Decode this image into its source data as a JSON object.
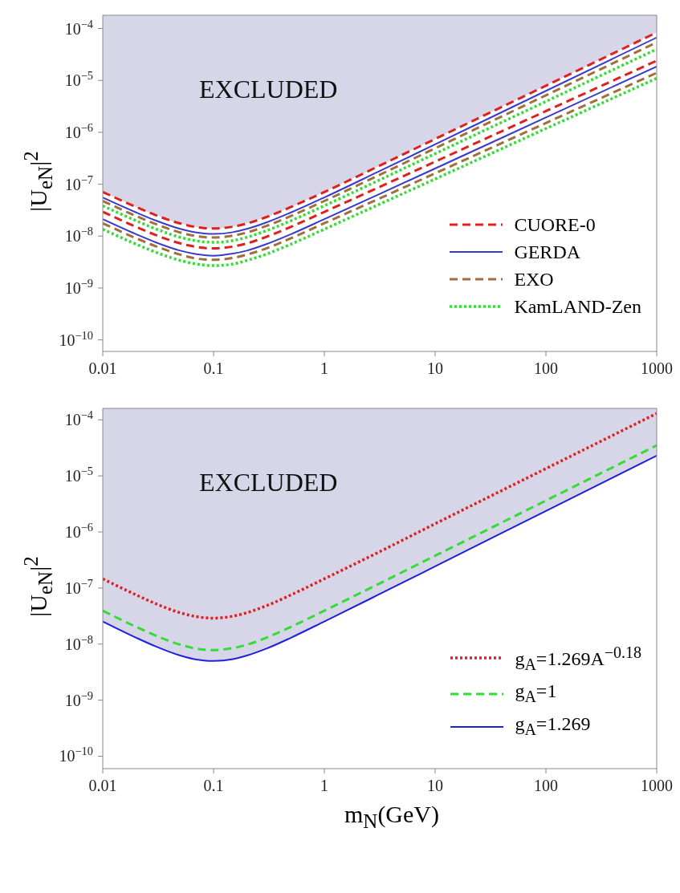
{
  "chart_data": [
    {
      "type": "line",
      "ylabel": "|U$_{eN}$|$^{2}$",
      "annotations": [
        "EXCLUDED"
      ],
      "log": "xy",
      "legend": "right",
      "xlim": [
        0.01,
        1000
      ],
      "xticks": [
        0.01,
        0.1,
        1,
        10,
        100,
        1000
      ],
      "ylim": [
        6e-11,
        0.00018
      ],
      "yticks": [
        {
          "value": 1e-10,
          "label": "10$^{−10}$"
        },
        {
          "value": 1e-09,
          "label": "10$^{−9}$"
        },
        {
          "value": 1e-08,
          "label": "10$^{−8}$"
        },
        {
          "value": 1e-07,
          "label": "10$^{−7}$"
        },
        {
          "value": 1e-06,
          "label": "10$^{−6}$"
        },
        {
          "value": 1e-05,
          "label": "10$^{−5}$"
        },
        {
          "value": 0.0001,
          "label": "10$^{−4}$"
        }
      ],
      "x": [
        0.01,
        0.02,
        0.03,
        0.05,
        0.07,
        0.1,
        0.15,
        0.2,
        0.3,
        0.5,
        1,
        3,
        10,
        100,
        1000
      ],
      "series": [
        {
          "name": "CUORE-0",
          "color": "#e0201c",
          "line_style": "dashed",
          "values": [
            7.07e-08,
            3.64e-08,
            2.54e-08,
            1.75e-08,
            1.49e-08,
            1.4e-08,
            1.52e-08,
            1.75e-08,
            2.33e-08,
            3.64e-08,
            7.07e-08,
            2.16e-07,
            7.44e-07,
            7.9e-06,
            8.4e-05
          ],
          "lower": [
            7.07e-08,
            3.64e-08,
            2.54e-08,
            1.75e-08,
            1.49e-08,
            1.4e-08,
            1.52e-08,
            1.75e-08,
            2.33e-08,
            3.64e-08,
            7.07e-08,
            2.16e-07,
            7.44e-07,
            7.9e-06,
            8.4e-05
          ],
          "upper": [
            0.00018,
            0.00018,
            0.00018,
            0.00018,
            0.00018,
            0.00018,
            0.00018,
            0.00018,
            0.00018,
            0.00018,
            0.00018,
            0.00018,
            0.00018,
            0.00018,
            0.00018
          ]
        },
        {
          "name": "GERDA",
          "color": "#3a3ad0",
          "line_style": "solid",
          "values": [
            5.56e-08,
            2.86e-08,
            2e-08,
            1.375e-08,
            1.17e-08,
            1.1e-08,
            1.19e-08,
            1.375e-08,
            1.83e-08,
            2.86e-08,
            5.56e-08,
            1.7e-07,
            5.87e-07,
            6.28e-06,
            6.7e-05
          ]
        },
        {
          "name": "EXO",
          "color": "#a0703c",
          "line_style": "dashed",
          "values": [
            4.75e-08,
            2.44e-08,
            1.71e-08,
            1.175e-08,
            1e-08,
            9.4e-09,
            1.02e-08,
            1.175e-08,
            1.57e-08,
            2.44e-08,
            4.75e-08,
            1.44e-07,
            4.92e-07,
            5.16e-06,
            5.4e-05
          ]
        },
        {
          "name": "KamLAND-Zen",
          "color": "#33dd33",
          "line_style": "dotted",
          "values": [
            3.84e-08,
            1.98e-08,
            1.38e-08,
            9.5e-09,
            8.1e-09,
            7.6e-09,
            8.2e-09,
            9.5e-09,
            1.27e-08,
            1.98e-08,
            3.84e-08,
            1.15e-07,
            3.87e-07,
            3.93e-06,
            4e-05
          ]
        },
        {
          "color": "#e0201c",
          "line_style": "dashed",
          "values": [
            2.93e-08,
            1.51e-08,
            1.05e-08,
            7.25e-09,
            6.2e-09,
            5.8e-09,
            6.3e-09,
            7.25e-09,
            9.7e-09,
            1.51e-08,
            2.93e-08,
            8.43e-08,
            2.72e-07,
            2.56e-06,
            2.4e-05
          ]
        },
        {
          "color": "#3a3ad0",
          "line_style": "solid",
          "values": [
            2.12e-08,
            1.09e-08,
            7.6e-09,
            5.25e-09,
            4.5e-09,
            4.2e-09,
            4.6e-09,
            5.25e-09,
            7e-09,
            1.09e-08,
            2.12e-08,
            6.18e-08,
            2.01e-07,
            1.93e-06,
            1.85e-05
          ]
        },
        {
          "color": "#a0703c",
          "line_style": "dashed",
          "values": [
            1.77e-08,
            9.1e-09,
            6.4e-09,
            4.4e-09,
            3.7e-09,
            3.5e-09,
            3.8e-09,
            4.4e-09,
            5.8e-09,
            9.1e-09,
            1.77e-08,
            5.07e-08,
            1.62e-07,
            1.51e-06,
            1.4e-05
          ]
        },
        {
          "color": "#33dd33",
          "line_style": "dotted",
          "values": [
            1.36e-08,
            7e-09,
            4.9e-09,
            3.4e-09,
            2.9e-09,
            2.7e-09,
            2.9e-09,
            3.4e-09,
            4.5e-09,
            7e-09,
            1.36e-08,
            3.93e-08,
            1.26e-07,
            1.18e-06,
            1.1e-05
          ]
        }
      ]
    },
    {
      "type": "line",
      "xlabel": "m$_{N}$(GeV)",
      "ylabel": "|U$_{eN}$|$^{2}$",
      "annotations": [
        "EXCLUDED"
      ],
      "log": "xy",
      "legend": "bottom right",
      "xlim": [
        0.01,
        1000
      ],
      "xticks": [
        0.01,
        0.1,
        1,
        10,
        100,
        1000
      ],
      "ylim": [
        6e-11,
        0.00016
      ],
      "yticks": [
        {
          "value": 1e-10,
          "label": "10$^{−10}$"
        },
        {
          "value": 1e-09,
          "label": "10$^{−9}$"
        },
        {
          "value": 1e-08,
          "label": "10$^{−8}$"
        },
        {
          "value": 1e-07,
          "label": "10$^{−7}$"
        },
        {
          "value": 1e-06,
          "label": "10$^{−6}$"
        },
        {
          "value": 1e-05,
          "label": "10$^{−5}$"
        },
        {
          "value": 0.0001,
          "label": "10$^{−4}$"
        }
      ],
      "x": [
        0.01,
        0.02,
        0.03,
        0.05,
        0.07,
        0.1,
        0.15,
        0.2,
        0.3,
        0.5,
        1,
        3,
        10,
        100,
        1000
      ],
      "series": [
        {
          "name": "g$_{A}$=1.269A$^{−0.18}$",
          "color": "#e02020",
          "line_style": "dotted",
          "values": [
            1.46e-07,
            7.54e-08,
            5.26e-08,
            3.625e-08,
            3.09e-08,
            2.9e-08,
            3.15e-08,
            3.625e-08,
            4.83e-08,
            7.54e-08,
            1.46e-07,
            4.23e-07,
            1.4e-06,
            1.35e-05,
            0.00013
          ]
        },
        {
          "name": "g$_{A}$=1",
          "color": "#33dd33",
          "line_style": "dashed",
          "values": [
            3.94e-08,
            2.03e-08,
            1.42e-08,
            9.75e-09,
            8.3e-09,
            7.8e-09,
            8.5e-09,
            9.75e-09,
            1.3e-08,
            2.03e-08,
            3.94e-08,
            1.15e-07,
            3.76e-07,
            3.63e-06,
            3.5e-05
          ]
        },
        {
          "name": "g$_{A}$=1.269",
          "color": "#1f1fe0",
          "line_style": "solid",
          "values": [
            2.53e-08,
            1.3e-08,
            9.1e-09,
            6.25e-09,
            5.3e-09,
            5e-09,
            5.4e-09,
            6.25e-09,
            8.3e-09,
            1.3e-08,
            2.53e-08,
            7.41e-08,
            2.43e-07,
            2.37e-06,
            2.3e-05
          ],
          "lower": [
            2.53e-08,
            1.3e-08,
            9.1e-09,
            6.25e-09,
            5.3e-09,
            5e-09,
            5.4e-09,
            6.25e-09,
            8.3e-09,
            1.3e-08,
            2.53e-08,
            7.41e-08,
            2.43e-07,
            2.37e-06,
            2.3e-05
          ],
          "upper": [
            0.00016,
            0.00016,
            0.00016,
            0.00016,
            0.00016,
            0.00016,
            0.00016,
            0.00016,
            0.00016,
            0.00016,
            0.00016,
            0.00016,
            0.00016,
            0.00016,
            0.00016
          ]
        }
      ]
    }
  ]
}
